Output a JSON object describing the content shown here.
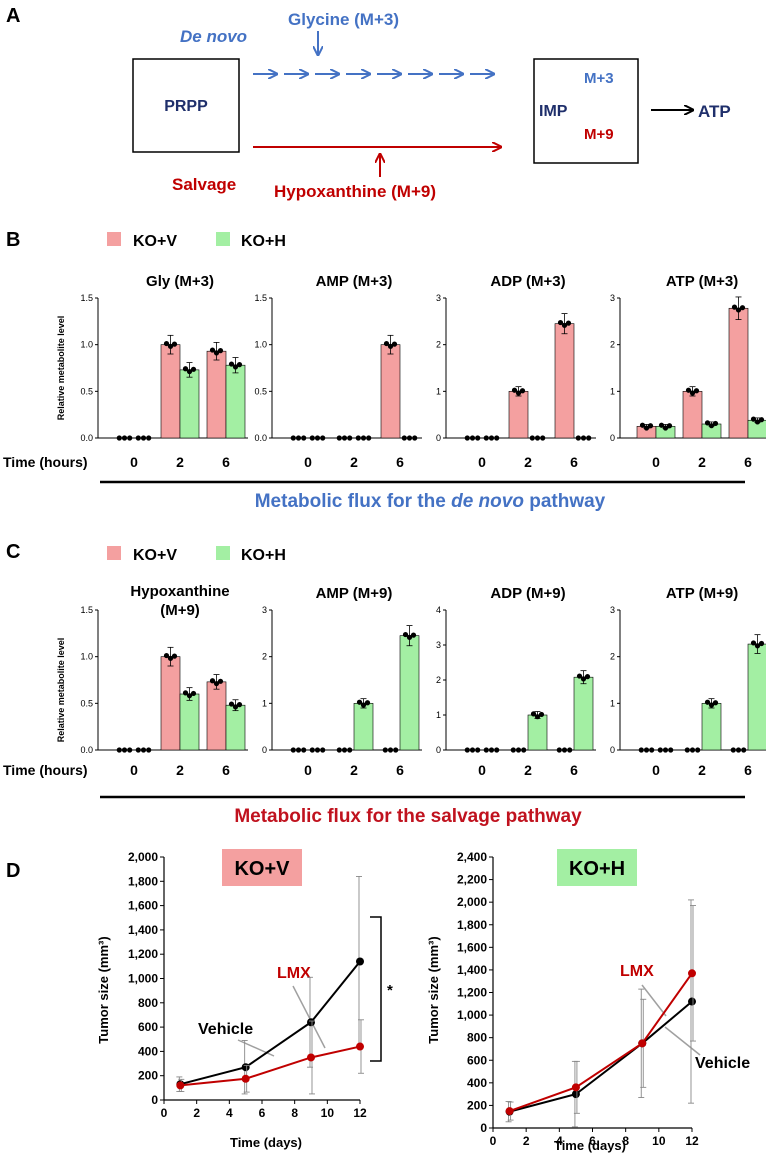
{
  "colors": {
    "kov": "#f4a0a0",
    "koh": "#a3efa3",
    "blue": "#4472c4",
    "navy": "#1f2f6b",
    "red": "#c00000",
    "dark_red": "#c0121e",
    "vehicle_line": "#000000",
    "lmx_line": "#c00000"
  },
  "panel_a": {
    "label": "A",
    "de_novo": "De novo",
    "glycine": "Glycine (M+3)",
    "prpp": "PRPP",
    "imp": "IMP",
    "m3": "M+3",
    "m9": "M+9",
    "atp": "ATP",
    "salvage": "Salvage",
    "hypoxanthine": "Hypoxanthine (M+9)"
  },
  "panel_b": {
    "label": "B",
    "legend": [
      "KO+V",
      "KO+H"
    ],
    "ylabel": "Relative metabolite level",
    "xaxis_title": "Time (hours)",
    "flux_prefix": "Metabolic flux for the ",
    "flux_italic": "de novo",
    "flux_suffix": " pathway"
  },
  "panel_c": {
    "label": "C",
    "legend": [
      "KO+V",
      "KO+H"
    ],
    "ylabel": "Relative metabolite level",
    "xaxis_title": "Time (hours)",
    "flux": "Metabolic flux for the salvage pathway"
  },
  "panel_d": {
    "label": "D",
    "left_box": "KO+V",
    "right_box": "KO+H",
    "ylabel_left": "Tumor size (mm³)",
    "ylabel_right": "Tumor size (mm³)",
    "xlabel": "Time (days)",
    "lmx": "LMX",
    "vehicle": "Vehicle",
    "star": "*"
  },
  "chart_data": [
    {
      "type": "bar",
      "panel": "B",
      "title": "Gly (M+3)",
      "categories": [
        "0",
        "2",
        "6"
      ],
      "ylim": [
        0,
        1.5
      ],
      "yticks": [
        "0.0",
        "0.5",
        "1.0",
        "1.5"
      ],
      "series": [
        {
          "name": "KO+V",
          "values": [
            0,
            1.0,
            0.93
          ]
        },
        {
          "name": "KO+H",
          "values": [
            0,
            0.73,
            0.78
          ]
        }
      ]
    },
    {
      "type": "bar",
      "panel": "B",
      "title": "AMP (M+3)",
      "categories": [
        "0",
        "2",
        "6"
      ],
      "ylim": [
        0,
        1.5
      ],
      "yticks": [
        "0.0",
        "0.5",
        "1.0",
        "1.5"
      ],
      "series": [
        {
          "name": "KO+V",
          "values": [
            0,
            0,
            1.0
          ]
        },
        {
          "name": "KO+H",
          "values": [
            0,
            0,
            0
          ]
        }
      ]
    },
    {
      "type": "bar",
      "panel": "B",
      "title": "ADP (M+3)",
      "categories": [
        "0",
        "2",
        "6"
      ],
      "ylim": [
        0,
        3
      ],
      "yticks": [
        "0",
        "1",
        "2",
        "3"
      ],
      "series": [
        {
          "name": "KO+V",
          "values": [
            0,
            1.0,
            2.45
          ]
        },
        {
          "name": "KO+H",
          "values": [
            0,
            0,
            0
          ]
        }
      ]
    },
    {
      "type": "bar",
      "panel": "B",
      "title": "ATP (M+3)",
      "categories": [
        "0",
        "2",
        "6"
      ],
      "ylim": [
        0,
        3
      ],
      "yticks": [
        "0",
        "1",
        "2",
        "3"
      ],
      "series": [
        {
          "name": "KO+V",
          "values": [
            0.25,
            1.0,
            2.78
          ]
        },
        {
          "name": "KO+H",
          "values": [
            0.25,
            0.3,
            0.38
          ]
        }
      ]
    },
    {
      "type": "bar",
      "panel": "C",
      "title": "Hypoxanthine (M+9)",
      "categories": [
        "0",
        "2",
        "6"
      ],
      "ylim": [
        0,
        1.5
      ],
      "yticks": [
        "0.0",
        "0.5",
        "1.0",
        "1.5"
      ],
      "series": [
        {
          "name": "KO+V",
          "values": [
            0,
            1.0,
            0.73
          ]
        },
        {
          "name": "KO+H",
          "values": [
            0,
            0.6,
            0.48
          ]
        }
      ]
    },
    {
      "type": "bar",
      "panel": "C",
      "title": "AMP (M+9)",
      "categories": [
        "0",
        "2",
        "6"
      ],
      "ylim": [
        0,
        3
      ],
      "yticks": [
        "0",
        "1",
        "2",
        "3"
      ],
      "series": [
        {
          "name": "KO+V",
          "values": [
            0,
            0,
            0
          ]
        },
        {
          "name": "KO+H",
          "values": [
            0,
            1.0,
            2.45
          ]
        }
      ]
    },
    {
      "type": "bar",
      "panel": "C",
      "title": "ADP (M+9)",
      "categories": [
        "0",
        "2",
        "6"
      ],
      "ylim": [
        0,
        4
      ],
      "yticks": [
        "0",
        "1",
        "2",
        "3",
        "4"
      ],
      "series": [
        {
          "name": "KO+V",
          "values": [
            0,
            0,
            0
          ]
        },
        {
          "name": "KO+H",
          "values": [
            0,
            1.0,
            2.08
          ]
        }
      ]
    },
    {
      "type": "bar",
      "panel": "C",
      "title": "ATP (M+9)",
      "categories": [
        "0",
        "2",
        "6"
      ],
      "ylim": [
        0,
        3
      ],
      "yticks": [
        "0",
        "1",
        "2",
        "3"
      ],
      "series": [
        {
          "name": "KO+V",
          "values": [
            0,
            0,
            0
          ]
        },
        {
          "name": "KO+H",
          "values": [
            0,
            1.0,
            2.27
          ]
        }
      ]
    },
    {
      "type": "line",
      "panel": "D-left",
      "x": [
        1,
        5,
        9,
        12
      ],
      "xticks": [
        "0",
        "2",
        "4",
        "6",
        "8",
        "10",
        "12"
      ],
      "xlim": [
        0,
        12
      ],
      "ylim": [
        0,
        2000
      ],
      "yticks": [
        "0",
        "200",
        "400",
        "600",
        "800",
        "1,000",
        "1,200",
        "1,400",
        "1,600",
        "1,800",
        "2,000"
      ],
      "series": [
        {
          "name": "Vehicle",
          "values": [
            130,
            270,
            640,
            1140
          ]
        },
        {
          "name": "LMX",
          "values": [
            120,
            175,
            350,
            440
          ]
        }
      ]
    },
    {
      "type": "line",
      "panel": "D-right",
      "x": [
        1,
        5,
        9,
        12
      ],
      "xticks": [
        "0",
        "2",
        "4",
        "6",
        "8",
        "10",
        "12"
      ],
      "xlim": [
        0,
        12
      ],
      "ylim": [
        0,
        2400
      ],
      "yticks": [
        "0",
        "200",
        "400",
        "600",
        "800",
        "1,000",
        "1,200",
        "1,400",
        "1,600",
        "1,800",
        "2,000",
        "2,200",
        "2,400"
      ],
      "series": [
        {
          "name": "Vehicle",
          "values": [
            145,
            300,
            750,
            1120
          ]
        },
        {
          "name": "LMX",
          "values": [
            150,
            360,
            750,
            1370
          ]
        }
      ]
    }
  ]
}
